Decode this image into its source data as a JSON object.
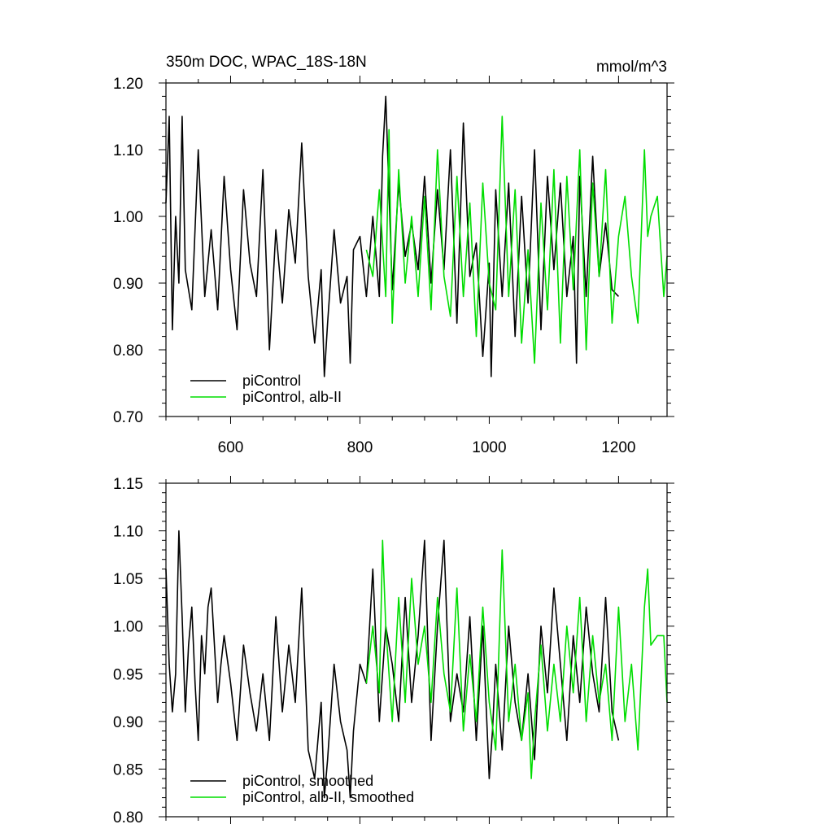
{
  "chart_data": [
    {
      "type": "line",
      "title": "350m DOC, WPAC_18S-18N",
      "units": "mmol/m^3",
      "xlim": [
        500,
        1275
      ],
      "ylim": [
        0.7,
        1.2
      ],
      "x_ticks": [
        600,
        800,
        1000,
        1200
      ],
      "x_tick_labels": [
        "600",
        "800",
        "1000",
        "1200"
      ],
      "y_ticks": [
        0.7,
        0.8,
        0.9,
        1.0,
        1.1,
        1.2
      ],
      "y_tick_labels": [
        "0.70",
        "0.80",
        "0.90",
        "1.00",
        "1.10",
        "1.20"
      ],
      "legend_position": "bottom-left",
      "series": [
        {
          "name": "piControl",
          "color": "#000000",
          "x": [
            500,
            505,
            510,
            515,
            520,
            525,
            530,
            540,
            550,
            560,
            570,
            580,
            590,
            600,
            610,
            620,
            630,
            640,
            650,
            660,
            670,
            680,
            690,
            700,
            710,
            720,
            730,
            740,
            745,
            750,
            760,
            770,
            780,
            785,
            790,
            800,
            810,
            820,
            830,
            835,
            840,
            850,
            860,
            870,
            880,
            890,
            900,
            910,
            920,
            930,
            940,
            950,
            960,
            970,
            980,
            990,
            1000,
            1003,
            1010,
            1020,
            1030,
            1040,
            1050,
            1060,
            1070,
            1080,
            1090,
            1100,
            1110,
            1120,
            1130,
            1135,
            1140,
            1150,
            1160,
            1170,
            1180,
            1190,
            1200
          ],
          "values": [
            1.02,
            1.15,
            0.83,
            1.0,
            0.9,
            1.15,
            0.92,
            0.86,
            1.1,
            0.88,
            0.98,
            0.86,
            1.06,
            0.92,
            0.83,
            1.04,
            0.93,
            0.88,
            1.07,
            0.8,
            0.98,
            0.87,
            1.01,
            0.93,
            1.11,
            0.91,
            0.81,
            0.92,
            0.76,
            0.84,
            0.98,
            0.87,
            0.91,
            0.78,
            0.95,
            0.97,
            0.88,
            1.0,
            0.88,
            1.09,
            1.18,
            0.89,
            1.05,
            0.94,
            0.99,
            0.92,
            1.06,
            0.9,
            1.04,
            0.92,
            1.1,
            0.84,
            1.14,
            0.91,
            0.96,
            0.79,
            0.93,
            0.76,
            1.04,
            0.88,
            1.05,
            0.82,
            1.03,
            0.87,
            1.1,
            0.83,
            1.06,
            0.92,
            1.05,
            0.88,
            0.97,
            0.78,
            1.06,
            0.88,
            1.09,
            0.91,
            0.99,
            0.89,
            0.88
          ]
        },
        {
          "name": "piControl, alb-II",
          "color": "#00dd00",
          "x": [
            810,
            820,
            830,
            840,
            845,
            850,
            860,
            870,
            880,
            890,
            900,
            910,
            920,
            930,
            940,
            950,
            960,
            970,
            980,
            990,
            1000,
            1010,
            1020,
            1030,
            1040,
            1050,
            1060,
            1070,
            1080,
            1090,
            1100,
            1110,
            1120,
            1130,
            1140,
            1150,
            1160,
            1170,
            1180,
            1190,
            1200,
            1210,
            1220,
            1230,
            1240,
            1245,
            1250,
            1260,
            1270,
            1275
          ],
          "values": [
            0.95,
            0.91,
            1.04,
            0.88,
            1.13,
            0.84,
            1.07,
            0.9,
            1.0,
            0.88,
            1.03,
            0.86,
            1.1,
            0.91,
            0.85,
            1.06,
            0.88,
            1.02,
            0.82,
            1.05,
            0.9,
            0.86,
            1.15,
            0.88,
            1.04,
            0.81,
            0.95,
            0.78,
            1.02,
            0.86,
            1.07,
            0.81,
            1.06,
            0.89,
            1.1,
            0.8,
            1.05,
            0.91,
            1.07,
            0.84,
            0.97,
            1.03,
            0.91,
            0.84,
            1.1,
            0.97,
            1.0,
            1.03,
            0.88,
            0.94
          ]
        }
      ]
    },
    {
      "type": "line",
      "title": "",
      "xlim": [
        500,
        1275
      ],
      "ylim": [
        0.8,
        1.15
      ],
      "x_ticks": [
        600,
        800,
        1000,
        1200
      ],
      "y_ticks": [
        0.8,
        0.85,
        0.9,
        0.95,
        1.0,
        1.05,
        1.1,
        1.15
      ],
      "y_tick_labels": [
        "0.80",
        "0.85",
        "0.90",
        "0.95",
        "1.00",
        "1.05",
        "1.10",
        "1.15"
      ],
      "legend_position": "bottom-left",
      "series": [
        {
          "name": "piControl, smoothed",
          "color": "#000000",
          "x": [
            500,
            505,
            510,
            515,
            520,
            525,
            530,
            535,
            540,
            545,
            550,
            555,
            560,
            565,
            570,
            575,
            580,
            585,
            590,
            600,
            610,
            620,
            630,
            640,
            650,
            660,
            670,
            680,
            690,
            700,
            710,
            720,
            730,
            740,
            745,
            750,
            760,
            770,
            780,
            785,
            790,
            800,
            810,
            820,
            830,
            840,
            850,
            860,
            870,
            880,
            890,
            900,
            910,
            920,
            930,
            940,
            950,
            960,
            970,
            980,
            990,
            1000,
            1005,
            1010,
            1020,
            1030,
            1040,
            1050,
            1060,
            1070,
            1080,
            1090,
            1100,
            1110,
            1120,
            1130,
            1140,
            1150,
            1160,
            1170,
            1180,
            1190,
            1200
          ],
          "values": [
            1.06,
            0.96,
            0.91,
            0.95,
            1.1,
            1.01,
            0.91,
            0.98,
            1.02,
            0.94,
            0.88,
            0.99,
            0.95,
            1.02,
            1.04,
            0.98,
            0.92,
            0.96,
            0.99,
            0.94,
            0.88,
            0.98,
            0.93,
            0.89,
            0.95,
            0.88,
            1.01,
            0.91,
            0.98,
            0.92,
            1.04,
            0.87,
            0.84,
            0.92,
            0.82,
            0.86,
            0.96,
            0.9,
            0.87,
            0.82,
            0.89,
            0.96,
            0.94,
            1.06,
            0.9,
            1.0,
            0.96,
            0.9,
            1.03,
            0.92,
            0.99,
            1.09,
            0.88,
            1.0,
            1.09,
            0.9,
            0.95,
            0.91,
            1.01,
            0.88,
            1.0,
            0.84,
            0.89,
            0.96,
            0.87,
            1.0,
            0.92,
            0.88,
            0.95,
            0.86,
            1.0,
            0.93,
            1.04,
            0.96,
            0.88,
            0.99,
            0.92,
            1.02,
            0.95,
            0.91,
            1.03,
            0.91,
            0.88
          ]
        },
        {
          "name": "piControl, alb-II, smoothed",
          "color": "#00dd00",
          "x": [
            810,
            820,
            830,
            835,
            840,
            850,
            860,
            870,
            880,
            890,
            900,
            910,
            920,
            930,
            940,
            950,
            960,
            970,
            980,
            990,
            1000,
            1010,
            1020,
            1030,
            1040,
            1050,
            1060,
            1065,
            1070,
            1080,
            1090,
            1100,
            1110,
            1120,
            1130,
            1140,
            1150,
            1160,
            1170,
            1180,
            1190,
            1200,
            1210,
            1220,
            1230,
            1240,
            1245,
            1250,
            1260,
            1270,
            1275
          ],
          "values": [
            0.94,
            1.0,
            0.93,
            1.09,
            1.0,
            0.9,
            1.03,
            0.92,
            1.05,
            0.96,
            1.0,
            0.92,
            1.03,
            0.95,
            0.91,
            1.04,
            0.89,
            0.97,
            0.9,
            1.02,
            0.92,
            0.87,
            1.08,
            0.9,
            0.96,
            0.88,
            0.93,
            0.84,
            0.9,
            0.98,
            0.89,
            0.96,
            0.9,
            1.0,
            0.93,
            1.03,
            0.9,
            0.99,
            0.92,
            0.96,
            0.88,
            1.02,
            0.9,
            0.96,
            0.87,
            1.02,
            1.06,
            0.98,
            0.99,
            0.99,
            0.92
          ]
        }
      ]
    }
  ]
}
